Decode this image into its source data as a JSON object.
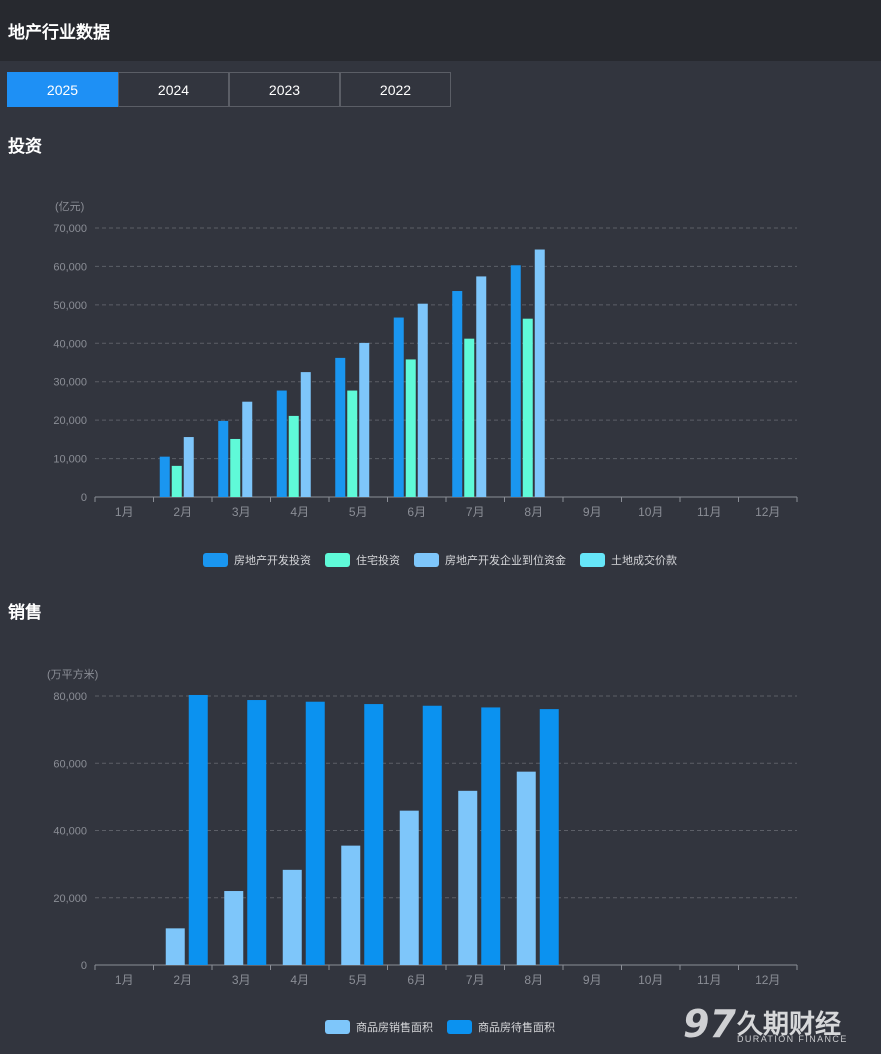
{
  "header": {
    "title": "地产行业数据"
  },
  "tabs": [
    "2025",
    "2024",
    "2023",
    "2022"
  ],
  "active_tab": "2025",
  "sections": {
    "investment": "投资",
    "sales": "销售"
  },
  "colors": {
    "accent": "#1e90f5",
    "bg": "#32353e",
    "header_bg": "#27292f"
  },
  "logo": {
    "mark": "97",
    "cn": "久期财经",
    "en": "DURATION FINANCE"
  },
  "chart_data": [
    {
      "type": "bar",
      "unit": "(亿元)",
      "categories": [
        "1月",
        "2月",
        "3月",
        "4月",
        "5月",
        "6月",
        "7月",
        "8月",
        "9月",
        "10月",
        "11月",
        "12月"
      ],
      "ylim": [
        0,
        70000
      ],
      "yticks": [
        0,
        10000,
        20000,
        30000,
        40000,
        50000,
        60000,
        70000
      ],
      "grid": true,
      "legend_position": "bottom-center",
      "series": [
        {
          "name": "房地产开发投资",
          "color": "#1a96f0",
          "values": [
            null,
            10500,
            19800,
            27700,
            36200,
            46700,
            53600,
            60300,
            null,
            null,
            null,
            null
          ]
        },
        {
          "name": "住宅投资",
          "color": "#5ffad8",
          "values": [
            null,
            8100,
            15100,
            21100,
            27700,
            35800,
            41200,
            46400,
            null,
            null,
            null,
            null
          ]
        },
        {
          "name": "房地产开发企业到位资金",
          "color": "#7ec6fa",
          "values": [
            null,
            15600,
            24800,
            32500,
            40100,
            50300,
            57400,
            64400,
            null,
            null,
            null,
            null
          ]
        },
        {
          "name": "土地成交价款",
          "color": "#66e6f8",
          "values": [
            null,
            null,
            null,
            null,
            null,
            null,
            null,
            null,
            null,
            null,
            null,
            null
          ]
        }
      ]
    },
    {
      "type": "bar",
      "unit": "(万平方米)",
      "categories": [
        "1月",
        "2月",
        "3月",
        "4月",
        "5月",
        "6月",
        "7月",
        "8月",
        "9月",
        "10月",
        "11月",
        "12月"
      ],
      "ylim": [
        0,
        80000
      ],
      "yticks": [
        0,
        20000,
        40000,
        60000,
        80000
      ],
      "grid": true,
      "legend_position": "bottom-center",
      "series": [
        {
          "name": "商品房销售面积",
          "color": "#7ec6fa",
          "values": [
            null,
            10900,
            22000,
            28300,
            35500,
            45900,
            51800,
            57500,
            null,
            null,
            null,
            null
          ]
        },
        {
          "name": "商品房待售面积",
          "color": "#0b92f0",
          "values": [
            null,
            80300,
            78800,
            78300,
            77600,
            77100,
            76600,
            76100,
            null,
            null,
            null,
            null
          ]
        }
      ]
    }
  ]
}
